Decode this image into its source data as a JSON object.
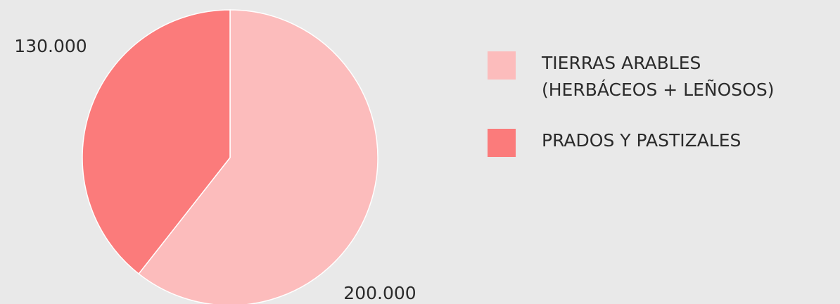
{
  "chart_data": {
    "type": "pie",
    "categories": [
      "TIERRAS ARABLES\n(HERBÁCEOS + LEÑOSOS)",
      "PRADOS Y PASTIZALES"
    ],
    "values": [
      200000,
      130000
    ],
    "value_labels": [
      "200.000",
      "130.000"
    ],
    "colors": [
      "#fcbcbc",
      "#fb7b7b"
    ]
  }
}
